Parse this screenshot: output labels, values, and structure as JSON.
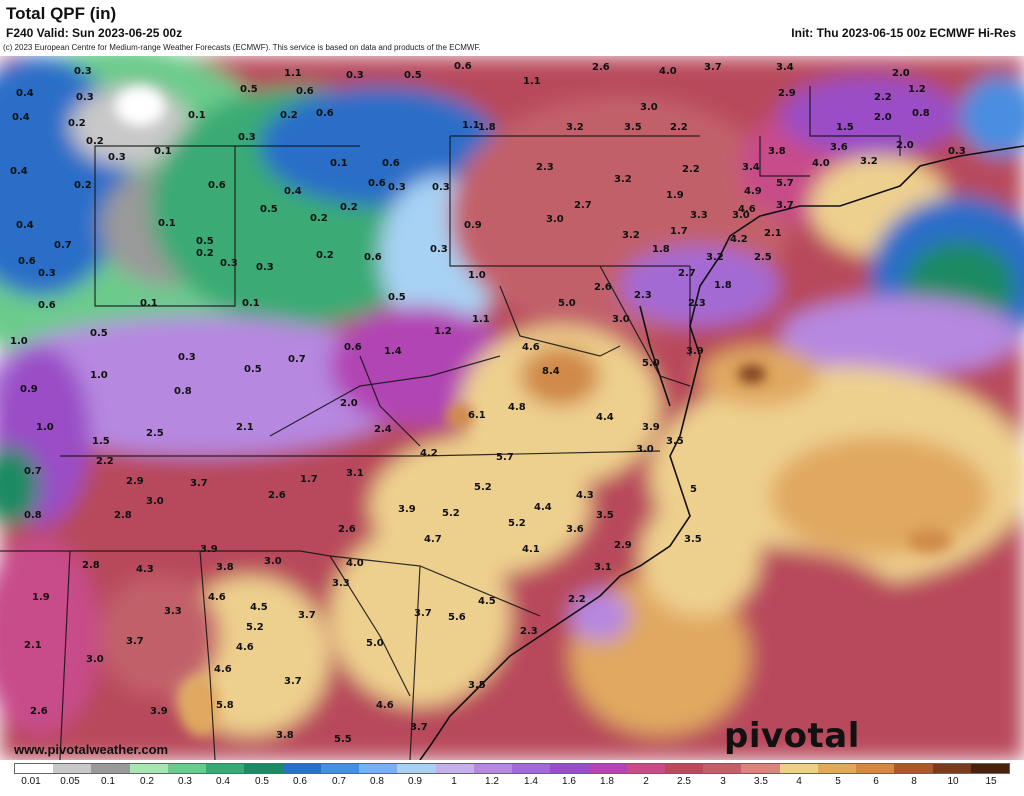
{
  "header": {
    "title": "Total QPF (in)",
    "valid": "F240 Valid: Sun 2023-06-25 00z",
    "init": "Init: Thu 2023-06-15 00z ECMWF Hi-Res",
    "copyright": "(c) 2023 European Centre for Medium-range Weather Forecasts (ECMWF). This service is based on data and products of the ECMWF."
  },
  "footer": {
    "site": "www.pivotalweather.com",
    "brand": "pivotal weather"
  },
  "colors": {
    "0.01": "#ffffff",
    "0.05": "#c8c8c8",
    "0.1": "#9a9a9a",
    "0.2": "#a8e6b4",
    "0.3": "#6ccb8c",
    "0.4": "#3aaa74",
    "0.5": "#1e8a64",
    "0.6": "#2c6ec8",
    "0.7": "#4a8ee0",
    "0.8": "#78b2ee",
    "0.9": "#a8d2f4",
    "1": "#c6b0ec",
    "1.2": "#b688e0",
    "1.4": "#a46ad4",
    "1.6": "#9a4ec6",
    "1.8": "#b244b4",
    "2": "#c84c8a",
    "2.5": "#b84a5c",
    "3": "#c2606a",
    "3.5": "#d8887a",
    "4": "#eed08e",
    "5": "#e0a860",
    "6": "#d08a48",
    "8": "#a85a2c",
    "10": "#7a3c1a",
    "15": "#4a220c"
  },
  "legend": {
    "ticks": [
      "0.01",
      "0.05",
      "0.1",
      "0.2",
      "0.3",
      "0.4",
      "0.5",
      "0.6",
      "0.7",
      "0.8",
      "0.9",
      "1",
      "1.2",
      "1.4",
      "1.6",
      "1.8",
      "2",
      "2.5",
      "3",
      "3.5",
      "4",
      "5",
      "6",
      "8",
      "10",
      "15"
    ]
  },
  "map_values": [
    "0.3",
    "1.1",
    "0.3",
    "0.5",
    "0.6",
    "1.1",
    "2.6",
    "4.0",
    "3.7",
    "3.4",
    "2.0",
    "0.4",
    "0.3",
    "0.5",
    "0.6",
    "2.9",
    "2.2",
    "0.4",
    "0.1",
    "0.2",
    "0.6",
    "3.0",
    "1.2",
    "0.8",
    "0.2",
    "0.2",
    "1.1",
    "1.8",
    "3.2",
    "3.5",
    "2.2",
    "1.5",
    "2.0",
    "0.3",
    "0.1",
    "0.3",
    "0.6",
    "3.8",
    "3.6",
    "2.0",
    "0.3",
    "0.4",
    "0.2",
    "0.6",
    "0.1",
    "0.6",
    "2.3",
    "3.2",
    "2.2",
    "3.4",
    "4.0",
    "3.2",
    "0.2",
    "0.3",
    "0.3",
    "0.4",
    "0.3",
    "1.9",
    "4.9",
    "5.7",
    "0.4",
    "0.1",
    "0.5",
    "0.2",
    "0.2",
    "2.7",
    "3.3",
    "3.0",
    "3.7",
    "4.6",
    "0.7",
    "0.5",
    "0.3",
    "0.9",
    "3.0",
    "3.2",
    "1.7",
    "2.1",
    "4.2",
    "0.6",
    "0.3",
    "0.3",
    "0.2",
    "0.6",
    "1.8",
    "3.2",
    "2.5",
    "1.0",
    "2.7",
    "1.8",
    "2.6",
    "2.3",
    "0.6",
    "0.1",
    "0.1",
    "0.5",
    "5.0",
    "2.3",
    "3.9",
    "0.5",
    "1.1",
    "1.2",
    "4.6",
    "3.0",
    "1.0",
    "0.3",
    "0.7",
    "0.6",
    "1.4",
    "5.0",
    "1.0",
    "0.5",
    "8.4",
    "0.9",
    "0.8",
    "2.0",
    "4.8",
    "6.1",
    "1.0",
    "2.5",
    "2.1",
    "2.4",
    "4.4",
    "3.9",
    "1.5",
    "4.2",
    "5.7",
    "3.5",
    "3.0",
    "0.7",
    "2.2",
    "2.9",
    "3.7",
    "1.7",
    "3.1",
    "5.2",
    "5",
    "3.0",
    "2.6",
    "4.3",
    "0.8",
    "2.8",
    "3.9",
    "5.2",
    "4.4",
    "3.5",
    "2.6",
    "5.2",
    "3.6",
    "3.5",
    "4.7",
    "2.9",
    "3.9",
    "3.0",
    "4.0",
    "4.1",
    "3.1",
    "2.8",
    "4.3",
    "3.8",
    "3.3",
    "1.9",
    "4.6",
    "4.5",
    "4.5",
    "2.2",
    "3.3",
    "3.7",
    "3.7",
    "5.6",
    "2.1",
    "3.7",
    "5.2",
    "2.3",
    "4.6",
    "5.0",
    "3.0",
    "4.6",
    "3.9",
    "5.8",
    "3.7",
    "3.5",
    "2.6",
    "4.6",
    "3.8",
    "5.5",
    "3.7"
  ]
}
